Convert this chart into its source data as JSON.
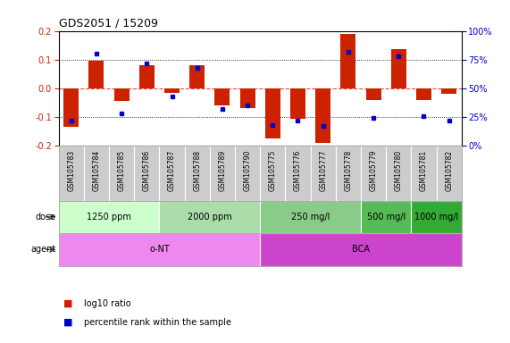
{
  "title": "GDS2051 / 15209",
  "samples": [
    "GSM105783",
    "GSM105784",
    "GSM105785",
    "GSM105786",
    "GSM105787",
    "GSM105788",
    "GSM105789",
    "GSM105790",
    "GSM105775",
    "GSM105776",
    "GSM105777",
    "GSM105778",
    "GSM105779",
    "GSM105780",
    "GSM105781",
    "GSM105782"
  ],
  "log10_ratio": [
    -0.135,
    0.095,
    -0.045,
    0.08,
    -0.015,
    0.08,
    -0.06,
    -0.07,
    -0.175,
    -0.105,
    -0.19,
    0.19,
    -0.04,
    0.135,
    -0.04,
    -0.02
  ],
  "percentile_rank": [
    22,
    80,
    28,
    72,
    43,
    68,
    32,
    35,
    18,
    22,
    17,
    82,
    24,
    78,
    26,
    22
  ],
  "ylim": [
    -0.2,
    0.2
  ],
  "yticks_left": [
    -0.2,
    -0.1,
    0.0,
    0.1,
    0.2
  ],
  "yticks_right": [
    0,
    25,
    50,
    75,
    100
  ],
  "hlines": [
    -0.1,
    0.0,
    0.1
  ],
  "bar_color": "#cc2200",
  "dot_color": "#0000cc",
  "bar_width": 0.6,
  "dose_groups": [
    {
      "label": "1250 ppm",
      "start": 0,
      "end": 4
    },
    {
      "label": "2000 ppm",
      "start": 4,
      "end": 8
    },
    {
      "label": "250 mg/l",
      "start": 8,
      "end": 12
    },
    {
      "label": "500 mg/l",
      "start": 12,
      "end": 14
    },
    {
      "label": "1000 mg/l",
      "start": 14,
      "end": 16
    }
  ],
  "dose_colors": [
    "#ccffcc",
    "#aaddaa",
    "#88cc88",
    "#55bb55",
    "#33aa33"
  ],
  "agent_groups": [
    {
      "label": "o-NT",
      "start": 0,
      "end": 8
    },
    {
      "label": "BCA",
      "start": 8,
      "end": 16
    }
  ],
  "agent_colors": [
    "#ee88ee",
    "#cc44cc"
  ],
  "legend_items": [
    {
      "color": "#cc2200",
      "label": "log10 ratio"
    },
    {
      "color": "#0000cc",
      "label": "percentile rank within the sample"
    }
  ],
  "ylabel_left_color": "#cc2200",
  "ylabel_right_color": "#0000cc",
  "zero_line_color": "#ee4444",
  "grid_color": "#000000",
  "bg_color": "#ffffff",
  "tick_label_bg": "#cccccc",
  "row_label_color": "#555555"
}
